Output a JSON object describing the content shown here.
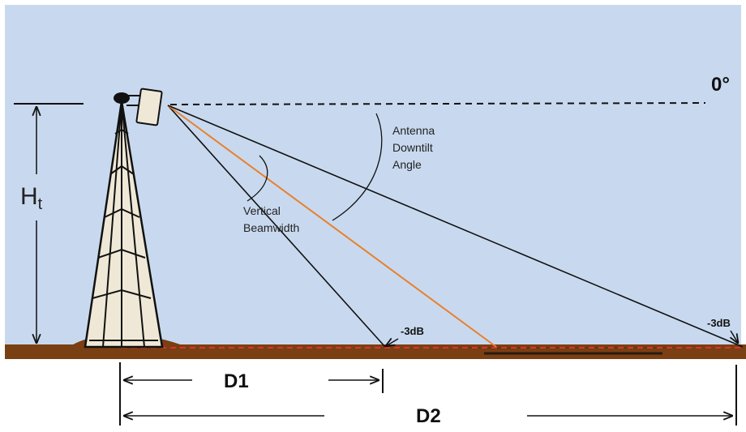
{
  "labels": {
    "zero_degree": "0°",
    "antenna_downtilt": [
      "Antenna",
      "Downtilt",
      "Angle"
    ],
    "vertical_beamwidth": [
      "Vertical",
      "Beamwidth"
    ],
    "minus_3db_near": "-3dB",
    "minus_3db_far": "-3dB",
    "height_main": "H",
    "height_sub": "t",
    "distance_1": "D1",
    "distance_2": "D2"
  },
  "colors": {
    "sky": "#c8d9ef",
    "ground": "#7a3f12",
    "boresight_line": "#e8802c",
    "threshold_line": "#e23030",
    "tower_fill": "#efe8d6",
    "beam_lines": "#111111"
  }
}
